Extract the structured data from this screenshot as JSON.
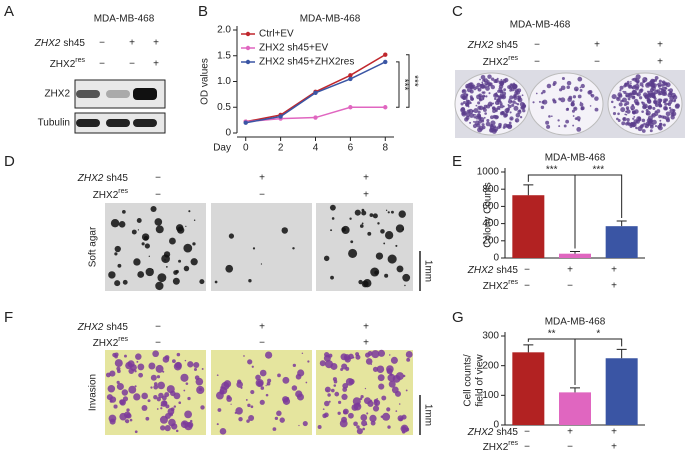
{
  "panels": {
    "a": {
      "label": "A",
      "title": "MDA-MB-468",
      "sh_row": {
        "gene": "ZHX2",
        "suffix": "sh45",
        "marks": [
          "−",
          "+",
          "+"
        ]
      },
      "res_row": {
        "base": "ZHX2",
        "sup": "res",
        "marks": [
          "−",
          "−",
          "+"
        ]
      },
      "blots": [
        "ZHX2",
        "Tubulin"
      ]
    },
    "b": {
      "label": "B"
    },
    "c": {
      "label": "C",
      "title": "MDA-MB-468",
      "sh_row": {
        "gene": "ZHX2",
        "suffix": "sh45",
        "marks": [
          "−",
          "+",
          "+"
        ]
      },
      "res_row": {
        "base": "ZHX2",
        "sup": "res",
        "marks": [
          "−",
          "−",
          "+"
        ]
      }
    },
    "d": {
      "label": "D",
      "side_label": "Soft agar",
      "scale": "1mm",
      "sh_row": {
        "gene": "ZHX2",
        "suffix": "sh45",
        "marks": [
          "−",
          "+",
          "+"
        ]
      },
      "res_row": {
        "base": "ZHX2",
        "sup": "res",
        "marks": [
          "−",
          "−",
          "+"
        ]
      }
    },
    "e": {
      "label": "E",
      "sh_row": {
        "gene": "ZHX2",
        "suffix": "sh45",
        "marks": [
          "−",
          "+",
          "+"
        ]
      },
      "res_row": {
        "base": "ZHX2",
        "sup": "res",
        "marks": [
          "−",
          "−",
          "+"
        ]
      }
    },
    "f": {
      "label": "F",
      "side_label": "Invasion",
      "scale": "1mm",
      "sh_row": {
        "gene": "ZHX2",
        "suffix": "sh45",
        "marks": [
          "−",
          "+",
          "+"
        ]
      },
      "res_row": {
        "base": "ZHX2",
        "sup": "res",
        "marks": [
          "−",
          "−",
          "+"
        ]
      }
    },
    "g": {
      "label": "G",
      "sh_row": {
        "gene": "ZHX2",
        "suffix": "sh45",
        "marks": [
          "−",
          "+",
          "+"
        ]
      },
      "res_row": {
        "base": "ZHX2",
        "sup": "res",
        "marks": [
          "−",
          "−",
          "+"
        ]
      }
    }
  },
  "chart_data": [
    {
      "type": "line",
      "title": "MDA-MB-468",
      "ylabel": "OD values",
      "xlabel": "Day",
      "x": [
        0,
        2,
        4,
        6,
        8
      ],
      "xlim": [
        -0.5,
        8.5
      ],
      "xticks": [
        0,
        2,
        4,
        6,
        8
      ],
      "ylim": [
        0,
        2
      ],
      "yticks": [
        0,
        0.5,
        {
          "value": 1,
          "label": "1.0"
        },
        1.5,
        {
          "value": 2,
          "label": "2.0"
        }
      ],
      "series": [
        {
          "name": "Ctrl+EV",
          "color": "#c0272d",
          "values": [
            0.22,
            0.35,
            0.8,
            1.12,
            1.52
          ]
        },
        {
          "name": "ZHX2 sh45+EV",
          "color": "#e066c0",
          "values": [
            0.22,
            0.28,
            0.3,
            0.5,
            0.5
          ]
        },
        {
          "name": "ZHX2 sh45+ZHX2res",
          "color": "#3a55a4",
          "values": [
            0.2,
            0.32,
            0.78,
            1.05,
            1.38
          ]
        }
      ],
      "annotations": [
        "***",
        "***"
      ]
    },
    {
      "type": "bar",
      "title": "MDA-MB-468",
      "ylabel": [
        "Colony Counts"
      ],
      "categories": [
        null,
        null,
        null
      ],
      "values": [
        730,
        50,
        370
      ],
      "errors": [
        120,
        25,
        60
      ],
      "colors": [
        "#b22222",
        "#e066c0",
        "#3a55a4"
      ],
      "ylim": [
        0,
        1000
      ],
      "yticks": [
        0,
        200,
        400,
        600,
        800,
        1000
      ],
      "annotations": [
        "***",
        "***"
      ]
    },
    {
      "type": "bar",
      "title": "MDA-MB-468",
      "ylabel": [
        "Cell counts/",
        "field of view"
      ],
      "categories": [
        null,
        null,
        null
      ],
      "values": [
        245,
        110,
        225
      ],
      "errors": [
        25,
        15,
        30
      ],
      "colors": [
        "#b22222",
        "#e066c0",
        "#3a55a4"
      ],
      "ylim": [
        0,
        300
      ],
      "yticks": [
        0,
        100,
        200,
        300
      ],
      "annotations": [
        "**",
        "*"
      ]
    }
  ]
}
